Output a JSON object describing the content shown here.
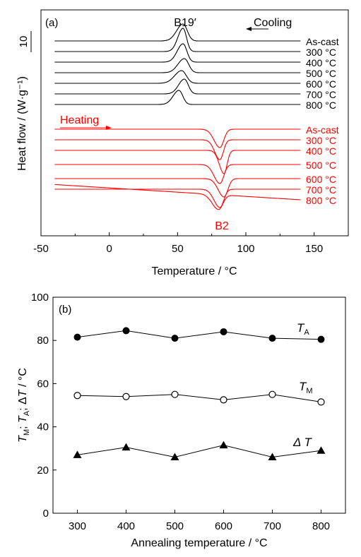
{
  "colors": {
    "cooling": "#000000",
    "heating": "#ff0000",
    "axis": "#000000"
  },
  "chart_data": [
    {
      "type": "line",
      "panel_label": "(a)",
      "xlabel": "Temperature / °C",
      "ylabel": "Heat flow / (W·g⁻¹)",
      "xlim": [
        -50,
        175
      ],
      "x_ticks": [
        -50,
        0,
        50,
        100,
        150
      ],
      "scale_bar_label": "10",
      "annotations": {
        "cooling": "Cooling",
        "heating": "Heating",
        "peak_cooling": "B19′",
        "peak_heating": "B2"
      },
      "series": [
        {
          "name": "As-cast",
          "group": "cooling",
          "offset": 0,
          "peak_x": 54,
          "peak_height": 2.4,
          "peak_width": 5.5,
          "baseline_slope": 0.0
        },
        {
          "name": "300 °C",
          "group": "cooling",
          "offset": -1.5,
          "peak_x": 54,
          "peak_height": 3.3,
          "peak_width": 4.5,
          "baseline_slope": 0.0
        },
        {
          "name": "400 °C",
          "group": "cooling",
          "offset": -3.0,
          "peak_x": 54,
          "peak_height": 2.6,
          "peak_width": 5.0,
          "baseline_slope": 0.0
        },
        {
          "name": "500 °C",
          "group": "cooling",
          "offset": -4.5,
          "peak_x": 55,
          "peak_height": 2.0,
          "peak_width": 5.5,
          "baseline_slope": 0.0
        },
        {
          "name": "600 °C",
          "group": "cooling",
          "offset": -6.0,
          "peak_x": 53,
          "peak_height": 1.8,
          "peak_width": 6.0,
          "baseline_slope": 0.0
        },
        {
          "name": "700 °C",
          "group": "cooling",
          "offset": -7.5,
          "peak_x": 55,
          "peak_height": 2.1,
          "peak_width": 5.0,
          "baseline_slope": 0.0
        },
        {
          "name": "800 °C",
          "group": "cooling",
          "offset": -9.0,
          "peak_x": 51,
          "peak_height": 2.0,
          "peak_width": 5.0,
          "baseline_slope": 0.0
        },
        {
          "name": "As-cast",
          "group": "heating",
          "offset": -12.5,
          "peak_x": 81,
          "peak_height": -2.6,
          "peak_width": 5.0,
          "baseline_slope": 0.0
        },
        {
          "name": "300 °C",
          "group": "heating",
          "offset": -14.0,
          "peak_x": 81,
          "peak_height": -2.8,
          "peak_width": 4.5,
          "baseline_slope": 0.0
        },
        {
          "name": "400 °C",
          "group": "heating",
          "offset": -15.5,
          "peak_x": 84,
          "peak_height": -3.3,
          "peak_width": 4.0,
          "baseline_slope": 0.0
        },
        {
          "name": "500 °C",
          "group": "heating",
          "offset": -17.5,
          "peak_x": 81,
          "peak_height": -2.7,
          "peak_width": 5.0,
          "baseline_slope": 0.0
        },
        {
          "name": "600 °C",
          "group": "heating",
          "offset": -19.5,
          "peak_x": 84,
          "peak_height": -2.6,
          "peak_width": 5.0,
          "baseline_slope": 0.0
        },
        {
          "name": "700 °C",
          "group": "heating",
          "offset": -21.0,
          "peak_x": 81,
          "peak_height": -2.6,
          "peak_width": 5.0,
          "baseline_slope": 0.0
        },
        {
          "name": "800 °C",
          "group": "heating",
          "offset": -22.5,
          "peak_x": 80,
          "peak_height": -2.1,
          "peak_width": 5.5,
          "baseline_slope": -0.012
        }
      ]
    },
    {
      "type": "scatter",
      "panel_label": "(b)",
      "xlabel": "Annealing temperature / °C",
      "ylabel": "TM; TA; ΔT / °C",
      "xlim": [
        250,
        850
      ],
      "ylim": [
        0,
        100
      ],
      "x_ticks": [
        300,
        400,
        500,
        600,
        700,
        800
      ],
      "y_ticks": [
        0,
        20,
        40,
        60,
        80,
        100
      ],
      "x": [
        300,
        400,
        500,
        600,
        700,
        800
      ],
      "series": [
        {
          "name": "TA",
          "label_main": "T",
          "label_sub": "A",
          "marker": "filled-circle",
          "values": [
            81.5,
            84.5,
            81,
            84,
            81,
            80.5
          ]
        },
        {
          "name": "TM",
          "label_main": "T",
          "label_sub": "M",
          "marker": "open-circle",
          "values": [
            54.5,
            54,
            55,
            52.5,
            55,
            51.5
          ]
        },
        {
          "name": "ΔT",
          "label_main": "Δ T",
          "label_sub": "",
          "marker": "filled-triangle",
          "values": [
            27,
            30.5,
            26,
            31.5,
            26,
            29
          ]
        }
      ]
    }
  ]
}
